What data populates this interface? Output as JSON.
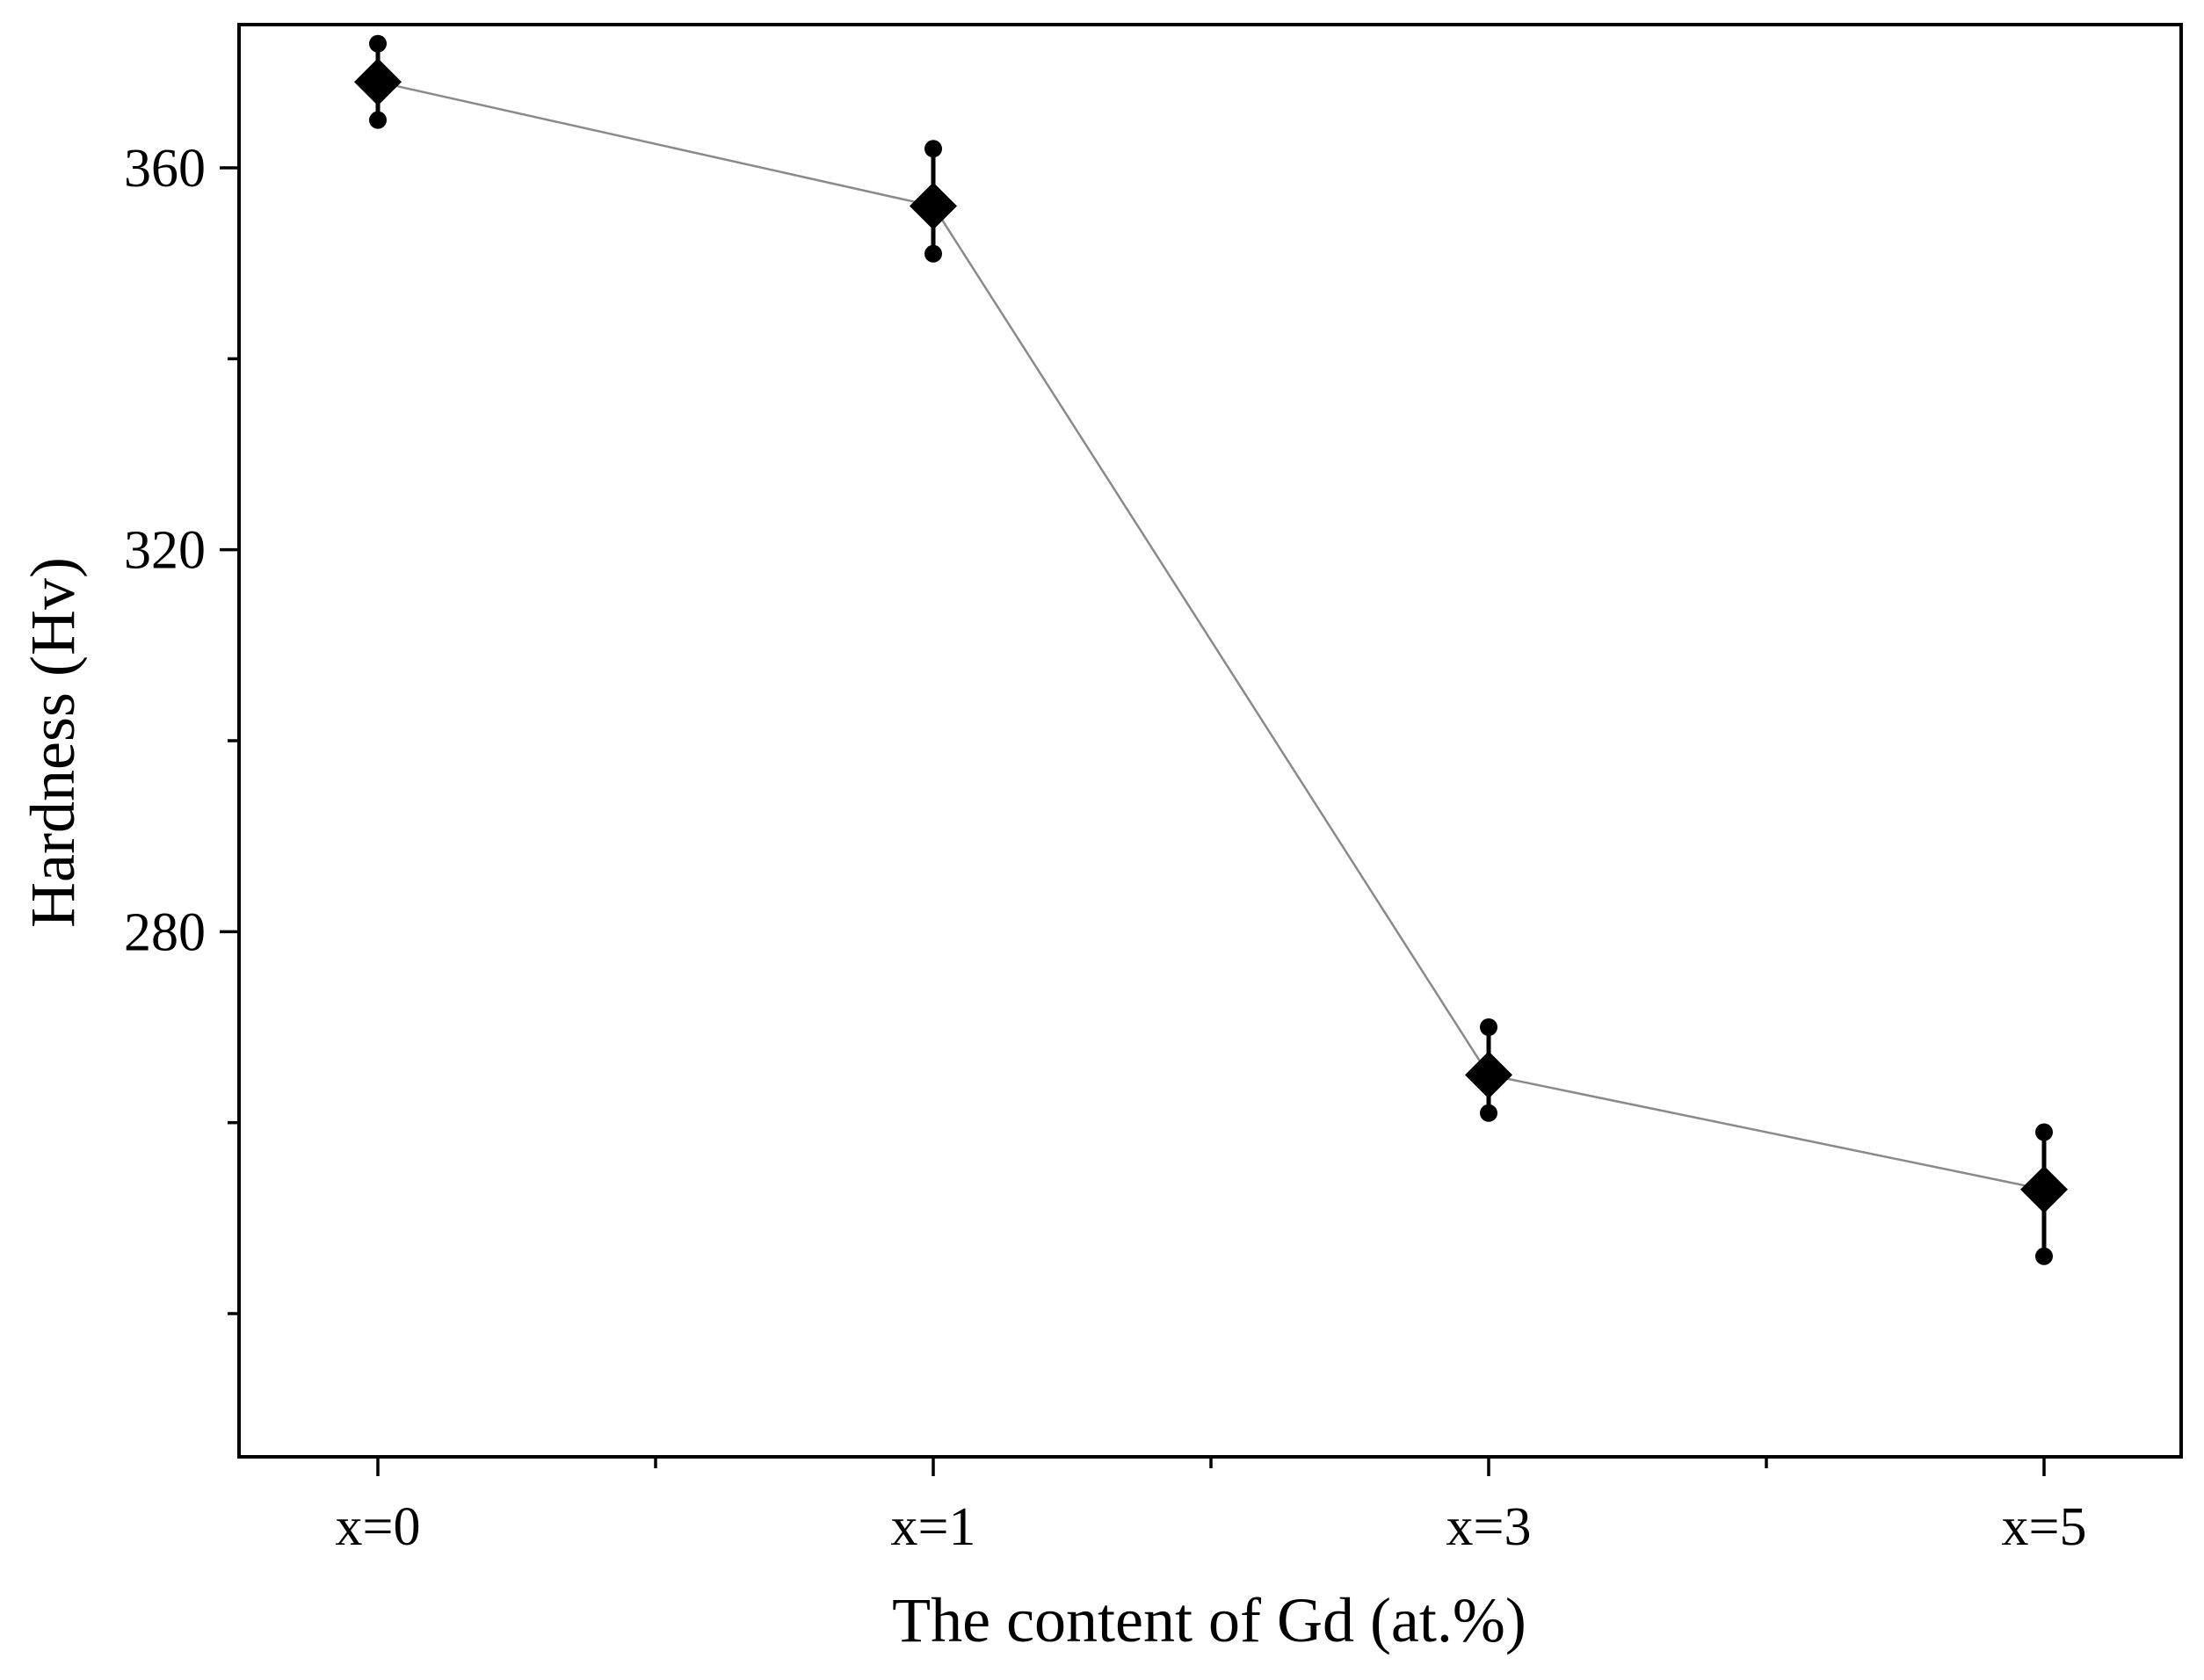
{
  "chart_data": {
    "type": "line",
    "title": "",
    "xlabel": "The content of Gd (at.%)",
    "ylabel": "Hardness (Hv)",
    "categories": [
      "x=0",
      "x=1",
      "x=3",
      "x=5"
    ],
    "ylim": [
      225,
      375
    ],
    "yticks": [
      280,
      320,
      360
    ],
    "grid": false,
    "legend": "none",
    "series": [
      {
        "values": [
          369,
          356,
          265,
          253
        ],
        "error_low": [
          365,
          351,
          261,
          246
        ],
        "error_high": [
          373,
          362,
          270,
          259
        ]
      }
    ],
    "colors": {
      "line": "#8a8a8a",
      "marker": "#000000",
      "axis": "#000000"
    }
  }
}
